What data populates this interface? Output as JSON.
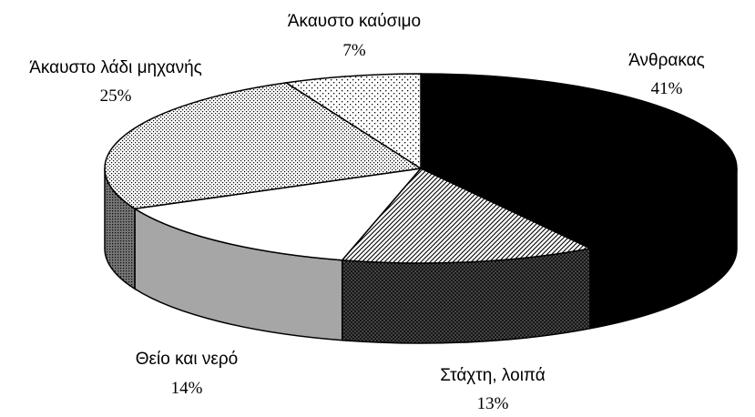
{
  "chart_data": {
    "type": "pie",
    "style": "3d",
    "title": "",
    "slices": [
      {
        "label": "Άνθρακας",
        "value": 41,
        "value_label": "41%",
        "fill": "#000000"
      },
      {
        "label": "Στάχτη, λοιπά",
        "value": 13,
        "value_label": "13%",
        "fill": "hatch"
      },
      {
        "label": "Θείο και νερό",
        "value": 14,
        "value_label": "14%",
        "fill": "#ffffff"
      },
      {
        "label": "Άκαυστο λάδι μηχανής",
        "value": 25,
        "value_label": "25%",
        "fill": "dots-dense"
      },
      {
        "label": "Άκαυστο καύσιμο",
        "value": 7,
        "value_label": "7%",
        "fill": "dots-sparse"
      }
    ]
  }
}
